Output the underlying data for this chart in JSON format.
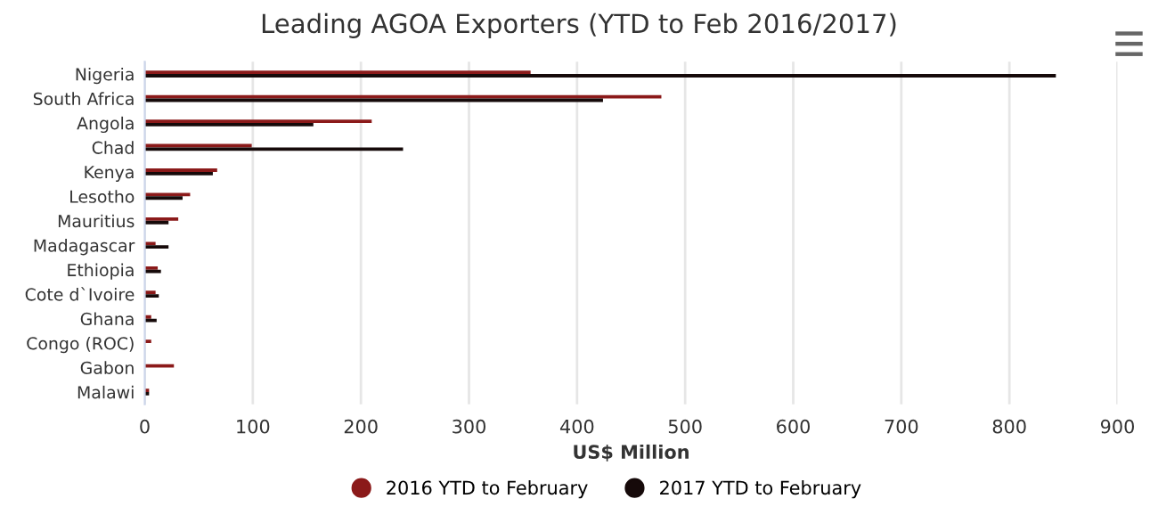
{
  "chart_data": {
    "type": "bar",
    "orientation": "horizontal",
    "title": "Leading AGOA Exporters (YTD to Feb 2016/2017)",
    "xlabel": "US$ Million",
    "categories": [
      "Nigeria",
      "South Africa",
      "Angola",
      "Chad",
      "Kenya",
      "Lesotho",
      "Mauritius",
      "Madagascar",
      "Ethiopia",
      "Cote d`Ivoire",
      "Ghana",
      "Congo (ROC)",
      "Gabon",
      "Malawi"
    ],
    "series": [
      {
        "name": "2016 YTD to February",
        "color": "#8b1a1a",
        "values": [
          357,
          478,
          210,
          99,
          67,
          42,
          31,
          10,
          12,
          10,
          6,
          6,
          27,
          4
        ]
      },
      {
        "name": "2017 YTD to February",
        "color": "#160a0a",
        "values": [
          843,
          424,
          156,
          239,
          63,
          35,
          22,
          22,
          15,
          13,
          11,
          null,
          null,
          4
        ]
      }
    ],
    "xlim": [
      0,
      900
    ],
    "xticks": [
      0,
      100,
      200,
      300,
      400,
      500,
      600,
      700,
      800,
      900
    ],
    "grid": "x",
    "legend": "bottom"
  }
}
